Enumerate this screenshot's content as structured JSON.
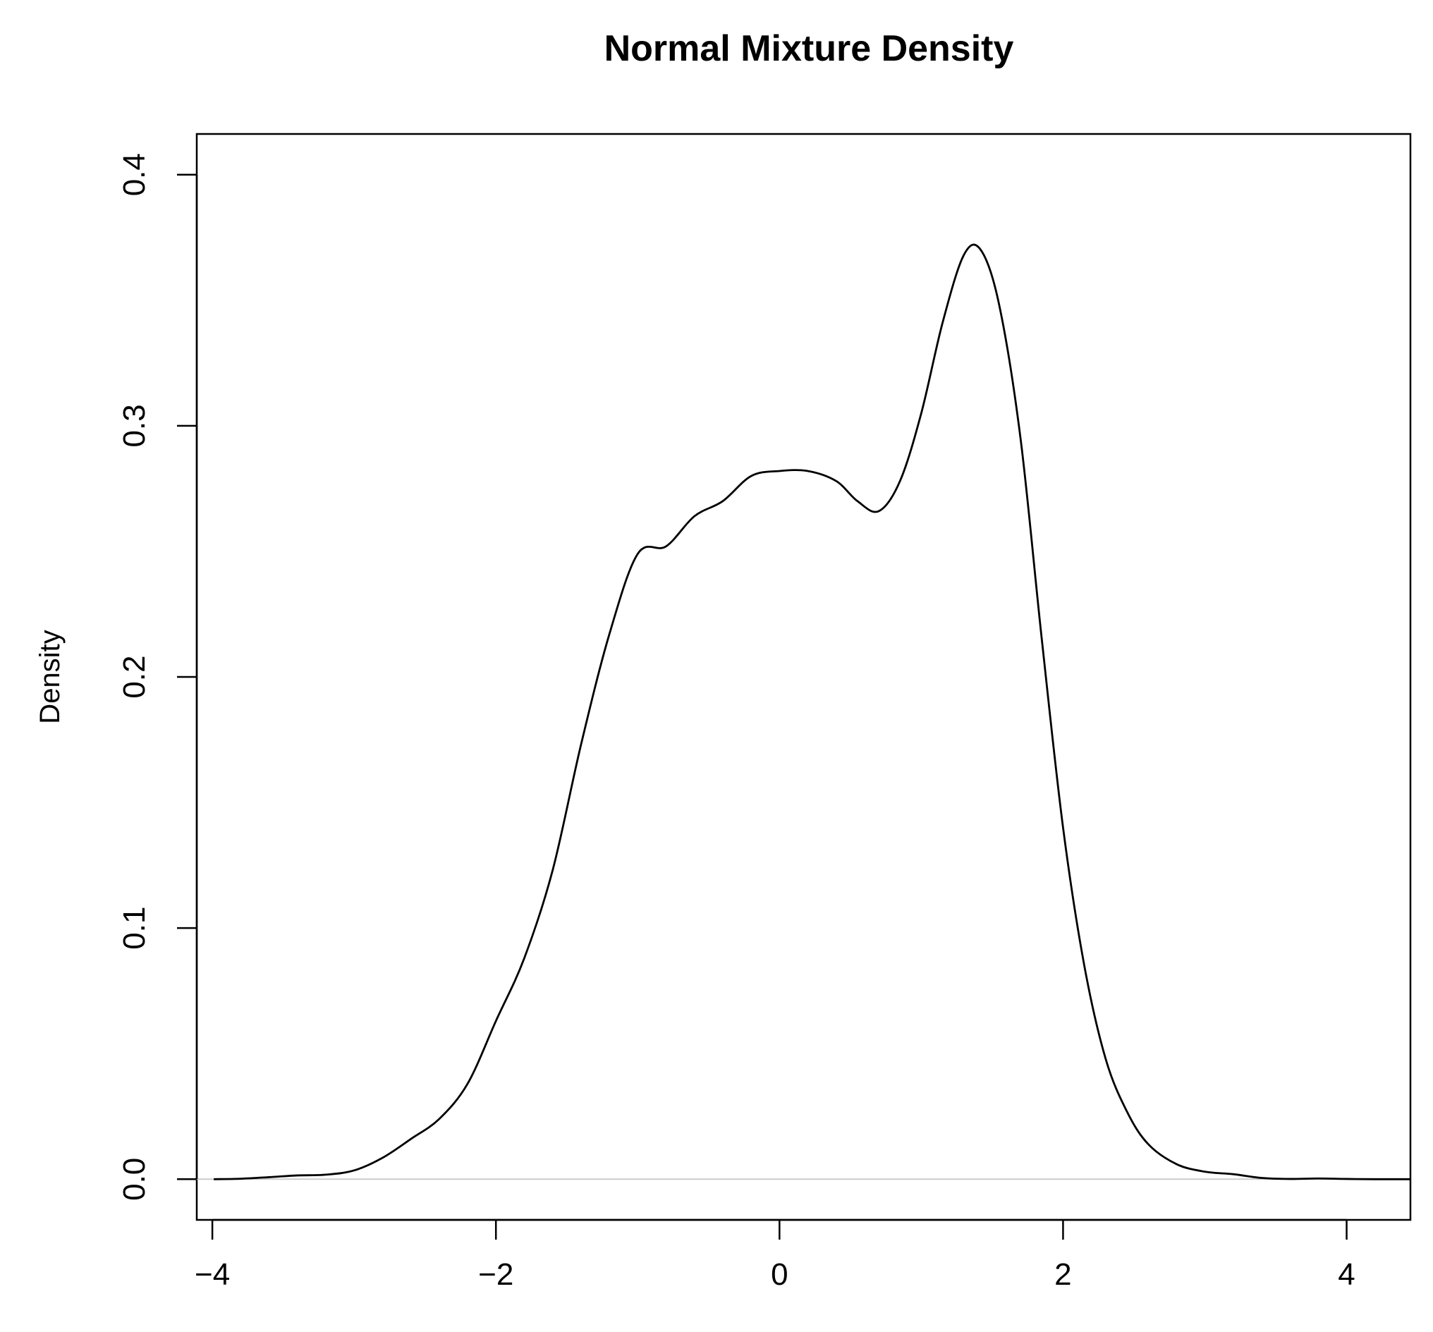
{
  "chart_data": {
    "type": "line",
    "title": "Normal Mixture Density",
    "xlabel": "",
    "ylabel": "Density",
    "xlim": [
      -4.11,
      4.45
    ],
    "ylim": [
      -0.0162,
      0.4162
    ],
    "x_ticks": [
      "−4",
      "−2",
      "0",
      "2",
      "4"
    ],
    "x_tick_values": [
      -4,
      -2,
      0,
      2,
      4
    ],
    "y_ticks": [
      "0.0",
      "0.1",
      "0.2",
      "0.3",
      "0.4"
    ],
    "y_tick_values": [
      0,
      0.1,
      0.2,
      0.3,
      0.4
    ],
    "grid": false,
    "zero_line_color": "#cccccc",
    "line_color": "#000000",
    "series": [
      {
        "x": [
          -3.99,
          -3.8,
          -3.6,
          -3.4,
          -3.2,
          -3.0,
          -2.8,
          -2.6,
          -2.4,
          -2.2,
          -2.0,
          -1.8,
          -1.6,
          -1.4,
          -1.2,
          -1.0,
          -0.8,
          -0.6,
          -0.4,
          -0.2,
          0.0,
          0.2,
          0.4,
          0.55,
          0.7,
          0.85,
          1.0,
          1.15,
          1.3,
          1.42,
          1.55,
          1.7,
          1.85,
          2.0,
          2.15,
          2.3,
          2.45,
          2.6,
          2.8,
          3.0,
          3.2,
          3.4,
          3.6,
          3.8,
          4.0,
          4.2,
          4.45
        ],
        "y": [
          0.0,
          0.0002,
          0.0008,
          0.0015,
          0.0018,
          0.0035,
          0.0085,
          0.016,
          0.024,
          0.038,
          0.063,
          0.088,
          0.123,
          0.173,
          0.217,
          0.249,
          0.252,
          0.264,
          0.27,
          0.28,
          0.282,
          0.282,
          0.278,
          0.27,
          0.266,
          0.278,
          0.305,
          0.341,
          0.368,
          0.37,
          0.348,
          0.295,
          0.215,
          0.14,
          0.085,
          0.048,
          0.027,
          0.014,
          0.006,
          0.003,
          0.002,
          0.0005,
          0.0001,
          0.0003,
          0.0001,
          0.0,
          0.0
        ]
      }
    ]
  }
}
